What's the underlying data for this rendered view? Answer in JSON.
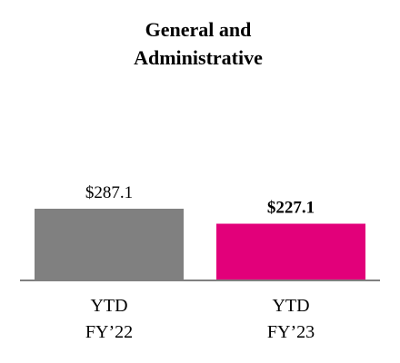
{
  "chart_data": {
    "type": "bar",
    "title_lines": [
      "General and",
      "Administrative"
    ],
    "categories": [
      [
        "YTD",
        "FY’22"
      ],
      [
        "YTD",
        "FY’23"
      ]
    ],
    "values": [
      287.1,
      227.1
    ],
    "value_labels": [
      "$287.1",
      "$227.1"
    ],
    "value_label_bold": [
      false,
      true
    ],
    "colors": [
      "#808080",
      "#e2007a"
    ],
    "axis_color": "#808080",
    "xlabel": "",
    "ylabel": "",
    "grid": false,
    "legend": "none"
  }
}
